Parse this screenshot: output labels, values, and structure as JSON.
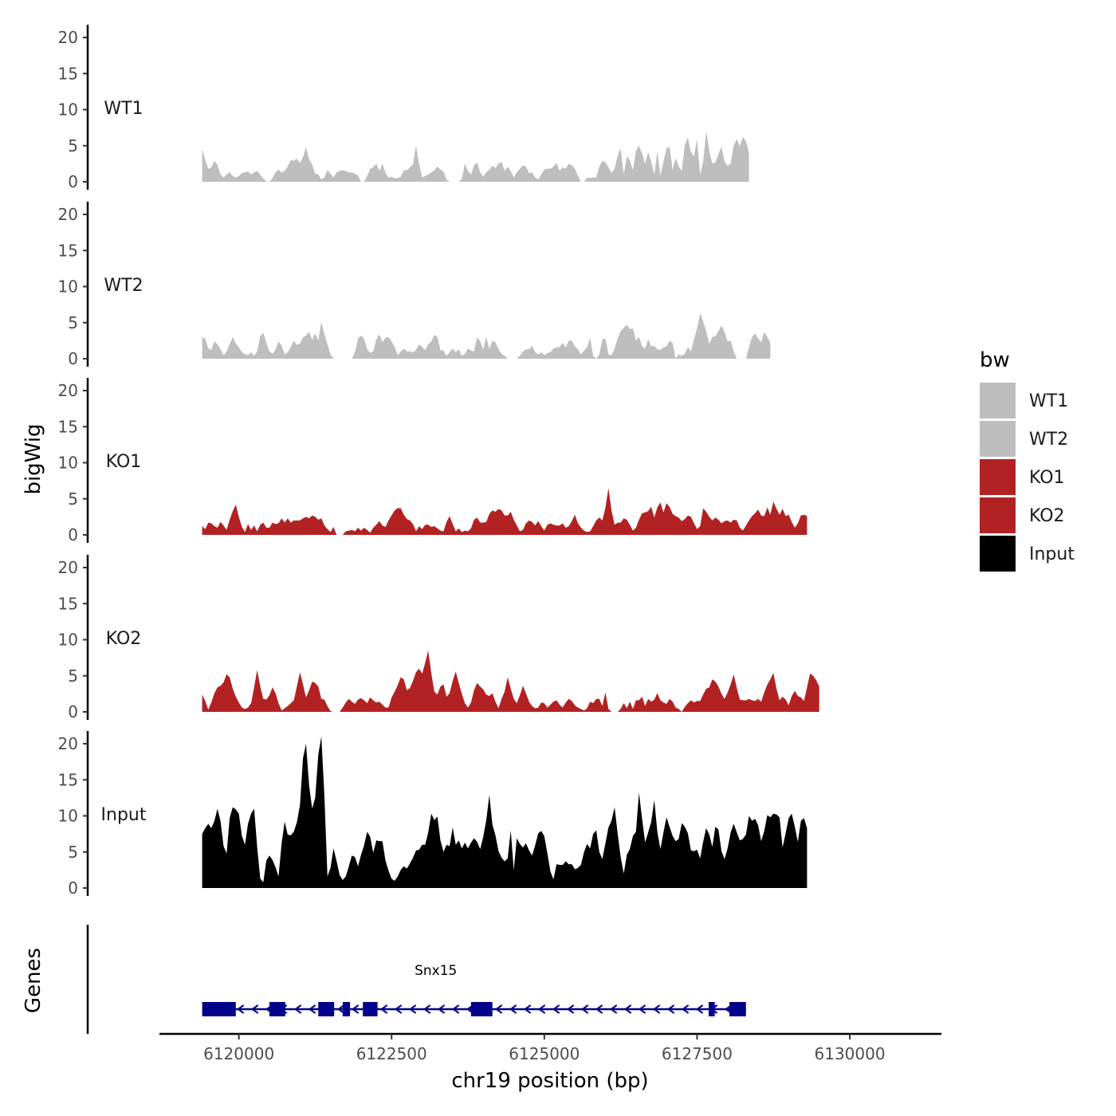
{
  "chart_data": {
    "type": "area",
    "title": "",
    "ylabel": "bigWig",
    "xlabel": "chr19 position (bp)",
    "xlim": [
      6118700,
      6131500
    ],
    "x_ticks": [
      6120000,
      6122500,
      6125000,
      6127500,
      6130000
    ],
    "x_tick_labels": [
      "6120000",
      "6122500",
      "6125000",
      "6127500",
      "6130000"
    ],
    "ylim": [
      0,
      21
    ],
    "y_ticks": [
      0,
      5,
      10,
      15,
      20
    ],
    "y_tick_labels": [
      "0",
      "5",
      "10",
      "15",
      "20"
    ],
    "gene_track_label": "Genes",
    "legend": {
      "title": "bw",
      "entries": [
        {
          "label": "WT1",
          "color": "#bebebe"
        },
        {
          "label": "WT2",
          "color": "#bebebe"
        },
        {
          "label": "KO1",
          "color": "#b22222"
        },
        {
          "label": "KO2",
          "color": "#b22222"
        },
        {
          "label": "Input",
          "color": "#000000"
        }
      ]
    },
    "series": [
      {
        "name": "WT1",
        "color": "#bebebe",
        "x_start": 6119400,
        "step": 50,
        "values": [
          4.5,
          3.0,
          1.8,
          2.0,
          2.9,
          2.3,
          1.0,
          0.6,
          1.0,
          1.3,
          0.8,
          0.6,
          0.8,
          1.2,
          1.3,
          1.4,
          1.0,
          1.3,
          1.5,
          1.0,
          0.4,
          0.1,
          0,
          0.5,
          1.3,
          1.7,
          1.3,
          1.5,
          2.1,
          3.0,
          2.9,
          3.2,
          2.6,
          3.4,
          4.8,
          3.1,
          2.4,
          1.1,
          1.0,
          0.3,
          0.6,
          1.6,
          1.1,
          0.6,
          1.3,
          1.5,
          1.6,
          1.5,
          1.3,
          1.3,
          1.1,
          0.9,
          0,
          0,
          0.8,
          1.8,
          2.0,
          2.5,
          1.5,
          2.5,
          1.2,
          0.6,
          0.7,
          0.5,
          0.5,
          0.7,
          1.6,
          1.6,
          2.0,
          2.4,
          5.0,
          2.5,
          0.6,
          0.8,
          1.0,
          1.3,
          1.6,
          2.1,
          1.7,
          1.4,
          0.3,
          0,
          0,
          0,
          0,
          0.4,
          2.5,
          1.5,
          1.0,
          2.3,
          2.7,
          1.3,
          0.7,
          1.3,
          1.7,
          2.2,
          1.9,
          2.5,
          2.8,
          1.5,
          2.1,
          1.5,
          0.6,
          1.3,
          1.8,
          2.3,
          2.1,
          1.2,
          1.3,
          0.6,
          0.3,
          1.0,
          1.7,
          1.8,
          1.8,
          2.1,
          2.6,
          1.5,
          2.0,
          1.8,
          2.5,
          2.3,
          1.8,
          0.8,
          0,
          0,
          0.6,
          0.5,
          0.6,
          0.6,
          2.1,
          2.9,
          2.7,
          2.0,
          1.2,
          1.8,
          3.6,
          4.6,
          1.0,
          3.5,
          3.0,
          1.6,
          4.3,
          5.0,
          3.9,
          2.5,
          4.1,
          2.8,
          1.0,
          4.2,
          0.8,
          2.8,
          4.6,
          4.9,
          1.6,
          3.3,
          2.1,
          1.5,
          5.1,
          6.1,
          4.1,
          3.5,
          5.9,
          1.0,
          2.7,
          7.0,
          4.3,
          2.5,
          2.7,
          3.8,
          4.9,
          2.8,
          2.2,
          2.5,
          5.0,
          5.9,
          4.9,
          6.2,
          5.6,
          4.0
        ]
      },
      {
        "name": "WT2",
        "color": "#bebebe",
        "x_start": 6119400,
        "step": 50,
        "values": [
          3.0,
          2.8,
          1.4,
          1.2,
          2.4,
          2.0,
          1.3,
          0.5,
          1.0,
          2.0,
          3.0,
          2.1,
          1.6,
          0.9,
          0.6,
          0.5,
          0.9,
          0.4,
          1.0,
          3.1,
          3.6,
          2.2,
          1.0,
          0.7,
          1.2,
          2.4,
          1.8,
          0.6,
          0.9,
          1.6,
          2.5,
          1.9,
          2.1,
          3.0,
          3.2,
          3.7,
          2.6,
          3.5,
          2.5,
          5.1,
          3.4,
          2.0,
          0.6,
          0,
          0,
          0,
          0,
          0,
          0,
          0,
          0.9,
          2.8,
          3.2,
          2.8,
          1.3,
          0.8,
          1.0,
          2.7,
          3.4,
          2.3,
          2.9,
          3.0,
          2.4,
          1.6,
          0.5,
          1.0,
          1.4,
          1.0,
          1.0,
          0.9,
          1.2,
          2.0,
          1.6,
          1.2,
          2.0,
          2.4,
          3.3,
          3.0,
          1.2,
          1.1,
          0.4,
          0.9,
          1.4,
          0.9,
          1.3,
          0.4,
          0.7,
          1.4,
          1.1,
          1.0,
          3.0,
          2.4,
          1.3,
          3.0,
          1.3,
          2.5,
          2.3,
          1.3,
          0.7,
          0.4,
          0,
          0,
          0,
          0,
          0.4,
          1.0,
          1.3,
          1.3,
          1.8,
          0.9,
          0.6,
          0.9,
          0.5,
          0.8,
          0.9,
          1.4,
          1.6,
          1.6,
          2.2,
          1.5,
          2.5,
          2.5,
          1.7,
          1.3,
          0.6,
          1.1,
          1.6,
          2.9,
          0.4,
          0,
          0.6,
          2.7,
          2.8,
          0.6,
          0.5,
          1.4,
          2.8,
          3.8,
          4.3,
          4.7,
          4.1,
          4.2,
          2.5,
          3.0,
          1.7,
          1.4,
          2.7,
          1.7,
          1.8,
          1.3,
          1.2,
          1.6,
          1.7,
          2.5,
          2.2,
          0,
          0.6,
          0.4,
          0.7,
          1.6,
          1.0,
          2.7,
          4.2,
          6.3,
          5.2,
          3.8,
          2.1,
          3.0,
          3.1,
          3.8,
          4.6,
          3.7,
          2.4,
          2.5,
          1.0,
          0,
          0,
          0,
          0,
          1.6,
          3.0,
          3.5,
          2.8,
          2.3,
          3.7,
          3.0,
          2.2
        ]
      },
      {
        "name": "KO1",
        "color": "#b22222",
        "x_start": 6119400,
        "step": 50,
        "values": [
          1.2,
          0.8,
          1.7,
          1.6,
          1.2,
          1.0,
          1.8,
          1.3,
          0.7,
          2.1,
          3.3,
          4.2,
          2.5,
          1.1,
          0.4,
          1.5,
          0.7,
          1.3,
          0.5,
          1.4,
          1.7,
          1.0,
          1.0,
          1.7,
          1.5,
          1.6,
          2.3,
          1.7,
          2.3,
          1.7,
          2.0,
          2.0,
          2.0,
          2.3,
          2.5,
          2.3,
          2.7,
          2.5,
          2.1,
          2.3,
          1.3,
          0.8,
          0.4,
          1.1,
          0,
          0,
          0,
          0.5,
          0.6,
          0.7,
          0.5,
          1.0,
          0.6,
          1.0,
          0.7,
          0.3,
          1.0,
          1.4,
          1.9,
          1.3,
          1.1,
          2.0,
          2.7,
          3.4,
          3.7,
          3.7,
          2.8,
          2.2,
          2.0,
          1.5,
          0.5,
          1.2,
          0.8,
          1.4,
          1.4,
          1.1,
          1.2,
          0.9,
          0.6,
          0.5,
          1.8,
          2.6,
          1.5,
          0.5,
          0.9,
          0.4,
          0.6,
          0.5,
          0.9,
          2.1,
          2.4,
          1.7,
          1.7,
          1.8,
          2.9,
          3.4,
          3.2,
          3.6,
          3.4,
          2.7,
          2.7,
          3.2,
          2.1,
          1.3,
          0.5,
          0.7,
          1.6,
          2.0,
          1.8,
          1.3,
          1.9,
          1.2,
          0.6,
          1.4,
          1.6,
          1.4,
          1.3,
          1.3,
          1.6,
          1.0,
          1.2,
          1.9,
          2.8,
          1.6,
          1.0,
          0.6,
          0.4,
          0.5,
          1.2,
          2.0,
          2.4,
          2.0,
          3.8,
          6.5,
          3.4,
          1.4,
          1.7,
          1.7,
          2.3,
          2.1,
          1.4,
          0.6,
          1.0,
          2.1,
          3.0,
          3.1,
          3.3,
          3.9,
          2.4,
          3.8,
          4.5,
          3.1,
          4.4,
          3.9,
          2.9,
          2.6,
          2.4,
          1.9,
          2.2,
          2.7,
          2.5,
          1.6,
          0.8,
          1.2,
          3.7,
          3.2,
          2.5,
          2.0,
          2.4,
          2.1,
          1.6,
          1.9,
          2.0,
          1.7,
          2.1,
          2.0,
          1.0,
          0.6,
          1.3,
          2.0,
          2.6,
          3.0,
          3.5,
          2.7,
          2.6,
          3.8,
          2.8,
          4.6,
          3.6,
          2.8,
          3.6,
          2.6,
          2.8,
          1.8,
          1.0,
          1.6,
          2.7,
          2.8,
          2.6
        ]
      },
      {
        "name": "KO2",
        "color": "#b22222",
        "x_start": 6119400,
        "step": 50,
        "values": [
          2.4,
          1.5,
          0.3,
          1.3,
          2.6,
          3.4,
          3.6,
          4.1,
          5.2,
          4.8,
          3.2,
          2.1,
          1.3,
          0.6,
          0.4,
          0.6,
          1.2,
          3.4,
          5.8,
          3.5,
          1.8,
          1.7,
          2.3,
          3.4,
          2.6,
          1.2,
          0.2,
          0.5,
          0.8,
          1.2,
          1.6,
          3.5,
          5.5,
          3.8,
          2.0,
          3.0,
          4.2,
          4.0,
          3.5,
          1.8,
          1.7,
          0.8,
          0.1,
          0,
          0,
          0,
          0.6,
          1.3,
          1.8,
          1.4,
          1.1,
          1.7,
          1.9,
          1.6,
          1.2,
          2.0,
          1.6,
          1.3,
          1.4,
          1.0,
          0.6,
          0.6,
          2.0,
          2.8,
          3.7,
          4.8,
          4.5,
          3.0,
          3.3,
          4.3,
          5.5,
          6.0,
          5.3,
          6.8,
          8.5,
          5.3,
          2.8,
          2.4,
          3.5,
          3.8,
          2.1,
          2.6,
          4.3,
          5.6,
          4.0,
          2.5,
          1.2,
          0.6,
          1.3,
          3.0,
          4.0,
          3.5,
          3.1,
          2.4,
          2.2,
          2.6,
          1.4,
          0.5,
          1.8,
          2.8,
          4.8,
          3.2,
          1.8,
          1.2,
          2.3,
          3.6,
          2.6,
          1.4,
          0.8,
          0.5,
          0.6,
          1.3,
          1.2,
          0.6,
          1.0,
          1.4,
          1.6,
          1.0,
          0.6,
          1.3,
          1.8,
          1.5,
          0.9,
          0.6,
          0.4,
          0.2,
          0.5,
          1.4,
          1.2,
          1.8,
          1.8,
          0.8,
          2.7,
          0.4,
          0,
          0,
          0,
          0.4,
          1.2,
          0.5,
          1.4,
          0.4,
          1.6,
          1.6,
          2.1,
          0.8,
          1.8,
          1.4,
          1.7,
          2.6,
          1.6,
          1.3,
          1.1,
          1.8,
          1.4,
          0.6,
          0.4,
          0,
          0.7,
          1.2,
          1.6,
          1.3,
          1.5,
          1.5,
          2.4,
          3.2,
          3.4,
          4.5,
          4.2,
          3.5,
          2.5,
          1.8,
          2.7,
          3.8,
          5.2,
          3.3,
          1.7,
          1.6,
          1.6,
          1.8,
          1.6,
          1.5,
          1.8,
          1.4,
          2.7,
          3.8,
          4.5,
          5.4,
          3.2,
          1.6,
          2.1,
          1.7,
          0.9,
          2.2,
          2.9,
          2.2,
          2.0,
          1.5,
          3.4,
          5.3,
          5.0,
          4.4,
          3.5
        ]
      },
      {
        "name": "Input",
        "color": "#000000",
        "x_start": 6119400,
        "step": 50,
        "values": [
          7.5,
          8.3,
          8.9,
          8.3,
          9.3,
          11.0,
          9.3,
          5.8,
          4.8,
          9.7,
          11.2,
          10.9,
          10.3,
          7.2,
          6.0,
          8.9,
          10.3,
          11.0,
          5.7,
          1.3,
          0.8,
          3.8,
          4.5,
          3.9,
          2.9,
          1.6,
          6.2,
          9.2,
          7.4,
          7.3,
          7.8,
          9.1,
          11.5,
          18.0,
          20.0,
          14.2,
          11.0,
          12.5,
          18.5,
          21.0,
          12.9,
          1.6,
          2.8,
          5.5,
          3.7,
          1.8,
          1.1,
          1.6,
          3.0,
          4.5,
          4.3,
          3.0,
          4.6,
          5.9,
          7.8,
          7.1,
          4.9,
          6.6,
          6.5,
          6.5,
          3.8,
          2.4,
          1.3,
          1.0,
          1.6,
          2.5,
          3.0,
          2.7,
          3.4,
          4.2,
          5.2,
          5.3,
          6.0,
          6.0,
          7.7,
          10.3,
          9.4,
          9.9,
          6.6,
          5.0,
          6.0,
          5.8,
          8.4,
          6.0,
          6.6,
          5.5,
          6.3,
          5.5,
          6.3,
          6.9,
          6.4,
          5.4,
          7.1,
          9.4,
          12.9,
          8.8,
          7.3,
          5.1,
          4.2,
          3.7,
          4.1,
          8.0,
          2.5,
          6.9,
          6.1,
          5.6,
          6.2,
          5.2,
          4.5,
          5.9,
          7.6,
          7.9,
          7.2,
          4.8,
          2.3,
          1.2,
          3.3,
          3.2,
          3.2,
          3.7,
          3.3,
          3.3,
          2.6,
          2.8,
          3.2,
          5.0,
          6.1,
          5.5,
          7.5,
          8.0,
          5.0,
          4.0,
          6.2,
          8.4,
          9.3,
          11.2,
          7.6,
          4.3,
          2.0,
          4.6,
          5.4,
          7.2,
          7.8,
          13.2,
          9.6,
          6.3,
          7.7,
          9.2,
          12.2,
          7.8,
          5.4,
          7.7,
          9.8,
          8.5,
          7.2,
          6.5,
          6.8,
          9.0,
          8.5,
          7.6,
          5.2,
          5.1,
          5.3,
          4.1,
          6.4,
          8.3,
          7.4,
          5.7,
          8.5,
          8.1,
          5.1,
          4.0,
          5.5,
          7.7,
          8.9,
          7.7,
          6.6,
          6.8,
          7.4,
          10.0,
          9.3,
          9.6,
          8.7,
          6.5,
          7.9,
          10.1,
          9.8,
          10.3,
          10.2,
          9.8,
          5.6,
          7.6,
          9.7,
          10.3,
          8.5,
          6.4,
          9.3,
          9.7,
          8.3
        ]
      }
    ],
    "gene": {
      "name": "Snx15",
      "strand": "-",
      "color": "#00008b",
      "start": 6119400,
      "end": 6128300,
      "exons": [
        [
          6119400,
          6119950
        ],
        [
          6120500,
          6120760
        ],
        [
          6121300,
          6121560
        ],
        [
          6121700,
          6121820
        ],
        [
          6122030,
          6122270
        ],
        [
          6123800,
          6124150
        ],
        [
          6127690,
          6127790
        ],
        [
          6128030,
          6128300
        ]
      ]
    }
  }
}
